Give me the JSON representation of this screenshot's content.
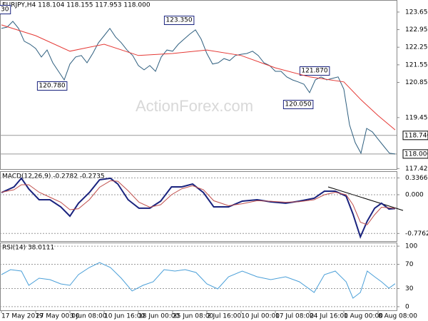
{
  "chart_data": [
    {
      "type": "line",
      "title": "EURJPY,H4 118.104 118.155 117.953 118.000",
      "watermark": "ActionForex.com",
      "xlim": [
        -0.25,
        69.25
      ],
      "ylim": [
        117.4,
        124.13
      ],
      "yticks": [
        {
          "value": 123.65,
          "label": "123.650"
        },
        {
          "value": 122.95,
          "label": "122.950"
        },
        {
          "value": 122.25,
          "label": "122.250"
        },
        {
          "value": 121.55,
          "label": "121.550"
        },
        {
          "value": 120.85,
          "label": "120.850"
        },
        {
          "value": 119.45,
          "label": "119.450"
        },
        {
          "value": 117.42,
          "label": "117.420"
        }
      ],
      "levels": [
        {
          "value": 118.74,
          "label": "118.740"
        },
        {
          "value": 118.0,
          "label": "118.000"
        }
      ],
      "annotations": [
        "30",
        "123.350",
        "120.780",
        "121.870",
        "120.050"
      ],
      "series": [
        {
          "color": "#2f5f7f",
          "x": [
            0,
            1,
            2,
            3,
            4,
            5,
            6,
            7,
            8,
            9,
            10,
            11,
            12,
            13,
            14,
            15,
            16,
            17,
            18,
            19,
            20,
            21,
            22,
            23,
            24,
            25,
            26,
            27,
            28,
            29,
            30,
            31,
            32,
            33,
            34,
            35,
            36,
            37,
            38,
            39,
            40,
            41,
            42,
            43,
            44,
            45,
            46,
            47,
            48,
            49,
            50,
            51,
            52,
            53,
            54,
            55,
            56,
            57,
            58,
            59,
            60,
            61,
            62,
            63,
            64,
            65,
            66,
            67,
            68,
            69
          ],
          "values": [
            123.0,
            123.05,
            123.28,
            123.0,
            122.49,
            122.37,
            122.2,
            121.86,
            122.14,
            121.63,
            121.29,
            120.95,
            121.58,
            121.86,
            121.92,
            121.63,
            122.0,
            122.43,
            122.71,
            123.0,
            122.66,
            122.43,
            122.14,
            121.92,
            121.52,
            121.35,
            121.52,
            121.29,
            121.86,
            122.14,
            122.09,
            122.37,
            122.57,
            122.77,
            122.94,
            122.57,
            122.0,
            121.58,
            121.63,
            121.8,
            121.72,
            121.92,
            121.97,
            122.0,
            122.09,
            121.92,
            121.63,
            121.52,
            121.29,
            121.29,
            121.07,
            120.95,
            120.87,
            120.78,
            120.44,
            120.95,
            121.07,
            120.95,
            121.01,
            121.07,
            120.58,
            119.16,
            118.45,
            118.03,
            119.02,
            118.88,
            118.59,
            118.31,
            118.03,
            118.0
          ]
        },
        {
          "color": "#e53935",
          "x": [
            0,
            6,
            12,
            18,
            24,
            30,
            36,
            42,
            48,
            54,
            60,
            63,
            66,
            69
          ],
          "values": [
            123.14,
            122.71,
            122.09,
            122.37,
            121.92,
            122.0,
            122.14,
            121.92,
            121.43,
            121.07,
            120.87,
            120.16,
            119.53,
            118.96
          ]
        }
      ]
    },
    {
      "type": "line",
      "title": "MACD(12,26,9) -0.2782 -0.2735",
      "xlim": [
        -0.25,
        69.25
      ],
      "ylim": [
        -0.929,
        0.471
      ],
      "grid": true,
      "yticks": [
        0.3366,
        {
          "value": 0,
          "label": "0.000"
        },
        -0.7762
      ],
      "x": [
        0,
        2.2,
        3.5,
        4.8,
        6.6,
        8.5,
        10.4,
        12,
        13.5,
        15.4,
        17.2,
        19.1,
        20.4,
        22.2,
        24.1,
        26,
        27.9,
        29.8,
        31.6,
        33.5,
        35.4,
        37.2,
        39.8,
        42.2,
        44.8,
        47.2,
        49.8,
        52.2,
        54.8,
        56.6,
        58.5,
        60.4,
        61.6,
        62.9,
        64.1,
        65.4,
        66.6,
        67.9,
        69
      ],
      "series": [
        {
          "color": "#1a237e",
          "values": [
            0.043,
            0.157,
            0.329,
            0.114,
            -0.1,
            -0.1,
            -0.243,
            -0.429,
            -0.171,
            0.043,
            0.3,
            0.329,
            0.214,
            -0.1,
            -0.271,
            -0.271,
            -0.129,
            0.157,
            0.157,
            0.214,
            0.043,
            -0.243,
            -0.243,
            -0.129,
            -0.1,
            -0.143,
            -0.171,
            -0.129,
            -0.071,
            0.071,
            0.071,
            -0.029,
            -0.386,
            -0.843,
            -0.529,
            -0.271,
            -0.171,
            -0.286,
            -0.278
          ]
        },
        {
          "color": "#c0504d",
          "values": [
            0.05,
            0.1,
            0.2,
            0.2,
            0.05,
            -0.05,
            -0.15,
            -0.3,
            -0.28,
            -0.1,
            0.15,
            0.28,
            0.27,
            0.08,
            -0.15,
            -0.25,
            -0.2,
            0.0,
            0.12,
            0.18,
            0.1,
            -0.12,
            -0.22,
            -0.18,
            -0.12,
            -0.13,
            -0.15,
            -0.14,
            -0.1,
            0.0,
            0.05,
            0.0,
            -0.2,
            -0.55,
            -0.6,
            -0.4,
            -0.25,
            -0.26,
            -0.2735
          ]
        }
      ]
    },
    {
      "type": "line",
      "title": "RSI(14) 38.0111",
      "xlim": [
        -0.25,
        69.25
      ],
      "ylim": [
        -6,
        106
      ],
      "grid": true,
      "yticks": [
        100,
        70,
        30,
        0
      ],
      "x": [
        0,
        1.6,
        3.5,
        4.8,
        6.6,
        8.5,
        10.4,
        12,
        13.5,
        15.4,
        17.2,
        19.1,
        21,
        22.9,
        24.8,
        26.6,
        28.5,
        30.4,
        32.2,
        34.1,
        36,
        37.9,
        39.8,
        42.2,
        44.8,
        47.2,
        49.8,
        52.2,
        54.8,
        56.6,
        58.5,
        60.4,
        61.6,
        62.9,
        64.1,
        65.4,
        66.6,
        67.9,
        69
      ],
      "xticks": [
        {
          "value": 0,
          "label": "17 May 2019"
        },
        {
          "value": 6,
          "label": "27 May 00:00"
        },
        {
          "value": 12,
          "label": "3 Jun 08:00"
        },
        {
          "value": 18,
          "label": "10 Jun 16:00"
        },
        {
          "value": 24,
          "label": "18 Jun 00:00"
        },
        {
          "value": 30,
          "label": "25 Jun 08:00"
        },
        {
          "value": 36,
          "label": "2 Jul 16:00"
        },
        {
          "value": 42,
          "label": "10 Jul 00:00"
        },
        {
          "value": 48,
          "label": "17 Jul 08:00"
        },
        {
          "value": 54,
          "label": "24 Jul 16:00"
        },
        {
          "value": 60,
          "label": "1 Aug 00:00"
        },
        {
          "value": 66,
          "label": "8 Aug 08:00"
        }
      ],
      "series": [
        {
          "color": "#4a9fd8",
          "values": [
            52.9,
            61.2,
            58.8,
            35.3,
            47.1,
            44.7,
            37.6,
            35.3,
            52.9,
            64.7,
            72.9,
            64.7,
            47.1,
            25.9,
            35.3,
            41.2,
            61.2,
            58.8,
            61.2,
            56.5,
            37.6,
            29.4,
            49.4,
            58.8,
            49.4,
            44.7,
            49.4,
            41.2,
            23.5,
            52.9,
            58.8,
            41.2,
            14.1,
            23.5,
            58.8,
            49.4,
            41.2,
            30.6,
            38.0
          ]
        }
      ]
    }
  ]
}
